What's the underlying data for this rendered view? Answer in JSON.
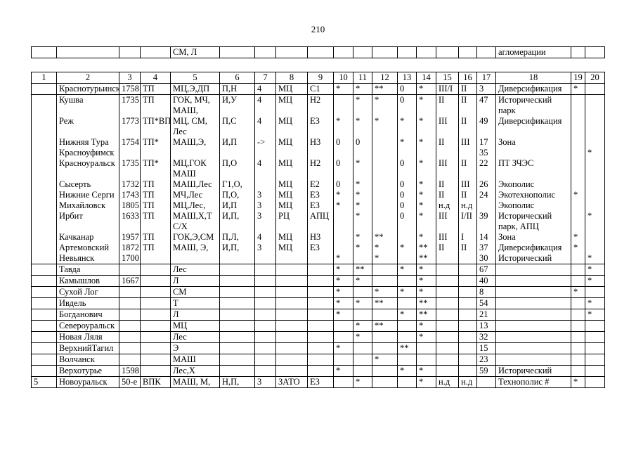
{
  "page": {
    "number": "210"
  },
  "fragment": {
    "cells": [
      "",
      "",
      "",
      "",
      "СМ, Л",
      "",
      "",
      "",
      "",
      "",
      "",
      "",
      "",
      "",
      "",
      "",
      "",
      "агломерации",
      "",
      ""
    ]
  },
  "table": {
    "header": [
      "1",
      "2",
      "3",
      "4",
      "5",
      "6",
      "7",
      "8",
      "9",
      "10",
      "11",
      "12",
      "13",
      "14",
      "15",
      "16",
      "17",
      "18",
      "19",
      "20"
    ],
    "rows": [
      {
        "grp": false,
        "cells": [
          "",
          "Краснотурьинск",
          "1758",
          "ТП",
          "МЦ,Э,ДП",
          "П,Н",
          "4",
          "МЦ",
          "С1",
          "*",
          "*",
          "**",
          "0",
          "*",
          "III/I",
          "II",
          "3",
          "Диверсификация",
          "*",
          ""
        ]
      },
      {
        "grp": true,
        "cells": [
          "",
          "Кушва",
          "1735",
          "ТП",
          "ГОК, МЧ, МАШ,",
          "И,У",
          "4",
          "МЦ",
          "Н2",
          "",
          "*",
          "*",
          "0",
          "*",
          "II",
          "II",
          "47",
          "Исторический парк",
          "",
          ""
        ]
      },
      {
        "grp": true,
        "cells": [
          "",
          "Реж",
          "1773",
          "ТП*ВП",
          "МЦ, СМ, Лес",
          "П,С",
          "4",
          "МЦ",
          "Е3",
          "*",
          "*",
          "*",
          "*",
          "*",
          "III",
          "II",
          "49",
          "Диверсификация",
          "",
          ""
        ]
      },
      {
        "grp": true,
        "cells": [
          "",
          "Нижняя Тура",
          "1754",
          "ТП*",
          "МАШ,Э,",
          "И,П",
          "->",
          "МЦ",
          "Н3",
          "0",
          "0",
          "",
          "*",
          "*",
          "II",
          "III",
          "17",
          "Зона",
          "",
          ""
        ]
      },
      {
        "grp": true,
        "cells": [
          "",
          "Красноуфимск",
          "",
          "",
          "",
          "",
          "",
          "",
          "",
          "",
          "",
          "",
          "",
          "",
          "",
          "",
          "35",
          "",
          "",
          "*"
        ]
      },
      {
        "grp": true,
        "cells": [
          "",
          "Красноуральск",
          "1735",
          "ТП*",
          "МЦ,ГОК МАШ",
          "П,О",
          "4",
          "МЦ",
          "Н2",
          "0",
          "*",
          "",
          "0",
          "*",
          "III",
          "II",
          "22",
          "ПТ ЗЧЭС",
          "",
          ""
        ]
      },
      {
        "grp": true,
        "cells": [
          "",
          "Сысерть",
          "1732",
          "ТП",
          "МАШ,Лес",
          "Г1,О,",
          "",
          "МЦ",
          "Е2",
          "0",
          "*",
          "",
          "0",
          "*",
          "II",
          "III",
          "26",
          "Экополис",
          "",
          ""
        ]
      },
      {
        "grp": true,
        "cells": [
          "",
          "Нижние Серги",
          "1743",
          "ТП",
          "МЧ,Лес",
          "П,О,",
          "3",
          "МЦ",
          "Е3",
          "*",
          "*",
          "",
          "0",
          "*",
          "II",
          "II",
          "24",
          "Экотехнополис",
          "*",
          ""
        ]
      },
      {
        "grp": true,
        "cells": [
          "",
          "Михайловск",
          "1805",
          "ТП",
          "МЦ,Лес,",
          "И,П",
          "3",
          "МЦ",
          "Е3",
          "*",
          "*",
          "",
          "0",
          "*",
          "н.д",
          "н.д",
          "",
          "Экополис",
          "",
          ""
        ]
      },
      {
        "grp": true,
        "cells": [
          "",
          "Ирбит",
          "1633",
          "ТП",
          "МАШ,Х,Т С/Х",
          "И,П,",
          "3",
          "РЦ",
          "АПЦ",
          "",
          "*",
          "",
          "0",
          "*",
          "III",
          "I/II",
          "39",
          "Исторический парк, АПЦ",
          "",
          "*"
        ]
      },
      {
        "grp": true,
        "cells": [
          "",
          "Качканар",
          "1957",
          "ТП",
          "ГОК,Э,СМ",
          "П,Л,",
          "4",
          "МЦ",
          "Н3",
          "",
          "*",
          "**",
          "",
          "*",
          "III",
          "I",
          "14",
          "Зона",
          "*",
          ""
        ]
      },
      {
        "grp": true,
        "cells": [
          "",
          "Артемовский",
          "1872",
          "ТП",
          "МАШ, Э,",
          "И,П,",
          "3",
          "МЦ",
          "Е3",
          "",
          "*",
          "*",
          "*",
          "**",
          "II",
          "II",
          "37",
          "Диверсификация",
          "*",
          ""
        ]
      },
      {
        "grp": true,
        "cells": [
          "",
          "Невьянск",
          "1700",
          "",
          "",
          "",
          "",
          "",
          "",
          "*",
          "",
          "*",
          "",
          "**",
          "",
          "",
          "30",
          "Исторический",
          "",
          "*"
        ]
      },
      {
        "grp": false,
        "cells": [
          "",
          "Тавда",
          "",
          "",
          "Лес",
          "",
          "",
          "",
          "",
          "*",
          "**",
          "",
          "*",
          "*",
          "",
          "",
          "67",
          "",
          "",
          "*"
        ]
      },
      {
        "grp": false,
        "cells": [
          "",
          "Камышлов",
          "1667",
          "",
          "Л",
          "",
          "",
          "",
          "",
          "*",
          "*",
          "",
          "",
          "*",
          "",
          "",
          "40",
          "",
          "",
          "*"
        ]
      },
      {
        "grp": false,
        "cells": [
          "",
          "Сухой Лог",
          "",
          "",
          "СМ",
          "",
          "",
          "",
          "",
          "*",
          "",
          "*",
          "*",
          "*",
          "",
          "",
          "8",
          "",
          "*",
          ""
        ]
      },
      {
        "grp": false,
        "cells": [
          "",
          "Ивдель",
          "",
          "",
          "Т",
          "",
          "",
          "",
          "",
          "*",
          "*",
          "**",
          "",
          "**",
          "",
          "",
          "54",
          "",
          "",
          "*"
        ]
      },
      {
        "grp": false,
        "cells": [
          "",
          "Богданович",
          "",
          "",
          "Л",
          "",
          "",
          "",
          "",
          "*",
          "",
          "",
          "*",
          "**",
          "",
          "",
          "21",
          "",
          "",
          "*"
        ]
      },
      {
        "grp": false,
        "cells": [
          "",
          "Североуральск",
          "",
          "",
          "МЦ",
          "",
          "",
          "",
          "",
          "",
          "*",
          "**",
          "",
          "*",
          "",
          "",
          "13",
          "",
          "",
          ""
        ]
      },
      {
        "grp": false,
        "cells": [
          "",
          "Новая Ляля",
          "",
          "",
          "Лес",
          "",
          "",
          "",
          "",
          "",
          "*",
          "",
          "",
          "*",
          "",
          "",
          "32",
          "",
          "",
          ""
        ]
      },
      {
        "grp": false,
        "cells": [
          "",
          "ВерхнийТагил",
          "",
          "",
          "Э",
          "",
          "",
          "",
          "",
          "*",
          "",
          "",
          "**",
          "",
          "",
          "",
          "15",
          "",
          "",
          ""
        ]
      },
      {
        "grp": false,
        "cells": [
          "",
          "Волчанск",
          "",
          "",
          "МАШ",
          "",
          "",
          "",
          "",
          "",
          "",
          "*",
          "",
          "",
          "",
          "",
          "23",
          "",
          "",
          ""
        ]
      },
      {
        "grp": false,
        "cells": [
          "",
          "Верхотурье",
          "1598",
          "",
          "Лес,Х",
          "",
          "",
          "",
          "",
          "*",
          "",
          "",
          "*",
          "*",
          "",
          "",
          "59",
          "Исторический",
          "",
          ""
        ]
      },
      {
        "grp": false,
        "cells": [
          "5",
          "Новоуральск",
          "50-е",
          "ВПК",
          "МАШ, М,",
          "Н,П,",
          "3",
          "ЗАТО",
          "Е3",
          "",
          "*",
          "",
          "",
          "*",
          "н.д",
          "н.д",
          "",
          "Технополис #",
          "*",
          ""
        ]
      }
    ]
  }
}
